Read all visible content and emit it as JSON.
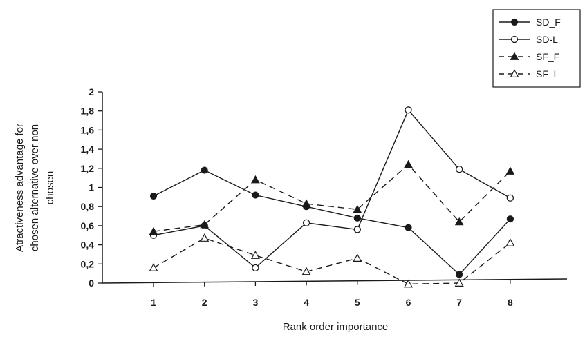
{
  "chart_data": {
    "type": "line",
    "xlabel": "Rank order importance",
    "ylabel_lines": [
      "Atractiveness advantage for",
      "chosen alternative over non",
      "chosen"
    ],
    "x": [
      1,
      2,
      3,
      4,
      5,
      6,
      7,
      8
    ],
    "ylim": [
      0,
      2
    ],
    "y_ticks": [
      "0",
      "0,2",
      "0,4",
      "0,6",
      "0,8",
      "1",
      "1,2",
      "1,4",
      "1,6",
      "1,8",
      "2"
    ],
    "x_ticks": [
      "1",
      "2",
      "3",
      "4",
      "5",
      "6",
      "7",
      "8"
    ],
    "legend_position": "top-right",
    "grid": false,
    "series": [
      {
        "name": "SD_F",
        "line": "solid",
        "marker": "filled-circle",
        "values": [
          0.91,
          1.18,
          0.92,
          0.8,
          0.68,
          0.58,
          0.09,
          0.67
        ]
      },
      {
        "name": "SD-L",
        "line": "solid",
        "marker": "open-circle",
        "values": [
          0.5,
          0.6,
          0.16,
          0.63,
          0.56,
          1.81,
          1.19,
          0.89
        ]
      },
      {
        "name": "SF_F",
        "line": "dashed",
        "marker": "filled-triangle",
        "values": [
          0.54,
          0.61,
          1.08,
          0.83,
          0.77,
          1.24,
          0.64,
          1.17
        ]
      },
      {
        "name": "SF_L",
        "line": "dashed",
        "marker": "open-triangle",
        "values": [
          0.16,
          0.47,
          0.29,
          0.12,
          0.26,
          -0.01,
          0.0,
          0.42
        ]
      }
    ]
  }
}
